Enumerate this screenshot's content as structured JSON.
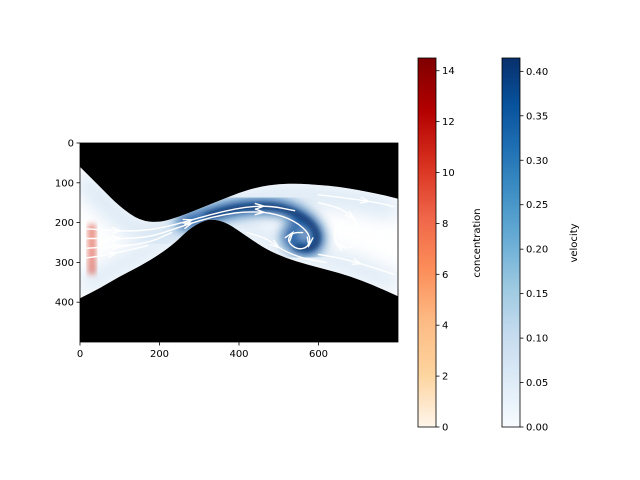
{
  "chart_data": [
    {
      "type": "heatmap",
      "title": "",
      "xlabel": "",
      "ylabel": "",
      "xlim": [
        0,
        800
      ],
      "ylim": [
        500,
        0
      ],
      "xticks": [
        0,
        200,
        400,
        600
      ],
      "yticks": [
        0,
        100,
        200,
        300,
        400
      ],
      "background_color": "#000000",
      "channel": {
        "top_wall": [
          [
            0,
            60
          ],
          [
            50,
            110
          ],
          [
            100,
            160
          ],
          [
            150,
            195
          ],
          [
            200,
            200
          ],
          [
            250,
            185
          ],
          [
            300,
            165
          ],
          [
            350,
            145
          ],
          [
            400,
            125
          ],
          [
            450,
            110
          ],
          [
            500,
            103
          ],
          [
            550,
            102
          ],
          [
            600,
            105
          ],
          [
            650,
            110
          ],
          [
            700,
            118
          ],
          [
            750,
            128
          ],
          [
            800,
            140
          ]
        ],
        "bottom_wall": [
          [
            0,
            390
          ],
          [
            50,
            365
          ],
          [
            100,
            335
          ],
          [
            150,
            310
          ],
          [
            200,
            280
          ],
          [
            240,
            250
          ],
          [
            270,
            220
          ],
          [
            300,
            200
          ],
          [
            330,
            190
          ],
          [
            370,
            200
          ],
          [
            420,
            235
          ],
          [
            470,
            268
          ],
          [
            520,
            290
          ],
          [
            570,
            305
          ],
          [
            620,
            318
          ],
          [
            680,
            335
          ],
          [
            740,
            358
          ],
          [
            800,
            385
          ]
        ]
      },
      "velocity_core": [
        [
          260,
          200
        ],
        [
          320,
          183
        ],
        [
          380,
          165
        ],
        [
          440,
          158
        ],
        [
          500,
          160
        ],
        [
          550,
          178
        ],
        [
          590,
          210
        ],
        [
          600,
          245
        ],
        [
          580,
          268
        ],
        [
          545,
          262
        ],
        [
          520,
          235
        ],
        [
          540,
          215
        ]
      ],
      "concentration_source": [
        [
          20,
          205
        ],
        [
          20,
          330
        ],
        [
          40,
          330
        ],
        [
          40,
          205
        ]
      ],
      "streamlines": [
        [
          [
            0,
            215
          ],
          [
            60,
            218
          ],
          [
            120,
            222
          ],
          [
            180,
            218
          ],
          [
            240,
            205
          ],
          [
            300,
            188
          ],
          [
            360,
            172
          ],
          [
            420,
            160
          ],
          [
            480,
            158
          ],
          [
            540,
            170
          ]
        ],
        [
          [
            0,
            240
          ],
          [
            60,
            240
          ],
          [
            120,
            240
          ],
          [
            180,
            235
          ],
          [
            240,
            215
          ],
          [
            300,
            195
          ],
          [
            360,
            180
          ],
          [
            420,
            172
          ],
          [
            480,
            175
          ],
          [
            540,
            195
          ],
          [
            580,
            230
          ],
          [
            575,
            262
          ],
          [
            545,
            268
          ],
          [
            520,
            245
          ],
          [
            535,
            225
          ],
          [
            560,
            225
          ]
        ],
        [
          [
            0,
            265
          ],
          [
            60,
            262
          ],
          [
            120,
            258
          ],
          [
            180,
            248
          ],
          [
            230,
            225
          ]
        ],
        [
          [
            0,
            290
          ],
          [
            50,
            285
          ],
          [
            110,
            272
          ],
          [
            170,
            258
          ]
        ],
        [
          [
            600,
            150
          ],
          [
            660,
            165
          ],
          [
            700,
            200
          ],
          [
            700,
            250
          ],
          [
            670,
            268
          ],
          [
            640,
            250
          ],
          [
            640,
            210
          ],
          [
            665,
            195
          ]
        ],
        [
          [
            600,
            280
          ],
          [
            660,
            290
          ],
          [
            730,
            310
          ],
          [
            790,
            330
          ]
        ],
        [
          [
            600,
            130
          ],
          [
            680,
            140
          ],
          [
            750,
            150
          ],
          [
            790,
            160
          ]
        ],
        [
          [
            420,
            225
          ],
          [
            470,
            240
          ],
          [
            510,
            270
          ],
          [
            560,
            290
          ],
          [
            620,
            300
          ]
        ]
      ]
    },
    {
      "type": "colorbar",
      "label": "concentration",
      "range": [
        0,
        14.5
      ],
      "ticks": [
        0,
        2,
        4,
        6,
        8,
        10,
        12,
        14
      ],
      "colors": [
        "#fff5eb",
        "#fdd49e",
        "#fdbb84",
        "#fc8d59",
        "#ef6548",
        "#d7301f",
        "#b30000",
        "#7f0000"
      ]
    },
    {
      "type": "colorbar",
      "label": "velocity",
      "range": [
        0,
        0.415
      ],
      "ticks": [
        0.0,
        0.05,
        0.1,
        0.15,
        0.2,
        0.25,
        0.3,
        0.35,
        0.4
      ],
      "tick_labels": [
        "0.00",
        "0.05",
        "0.10",
        "0.15",
        "0.20",
        "0.25",
        "0.30",
        "0.35",
        "0.40"
      ],
      "colors": [
        "#f7fbff",
        "#deebf7",
        "#c6dbef",
        "#9ecae1",
        "#6baed6",
        "#4292c6",
        "#2171b5",
        "#08519c",
        "#08306b"
      ]
    }
  ]
}
